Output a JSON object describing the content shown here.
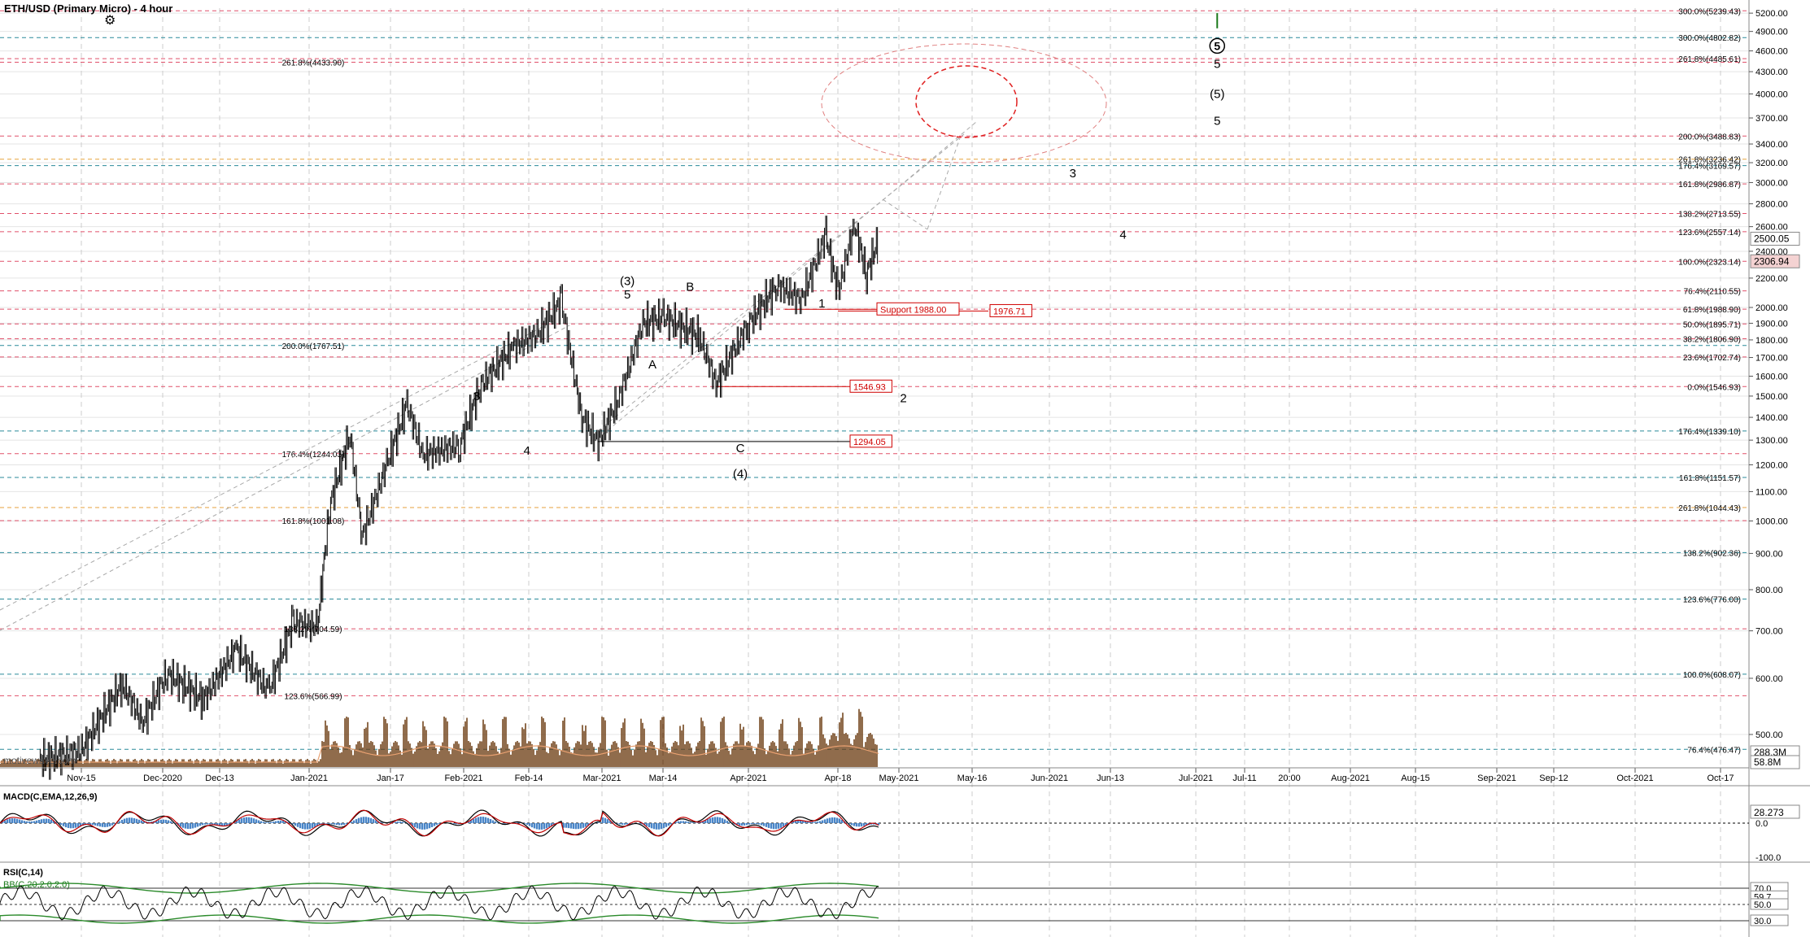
{
  "header": {
    "title": "ETH/USD (Primary Micro) - 4 hour",
    "watermark": "motivewave.com",
    "settings_icon": "gear-icon"
  },
  "colors": {
    "background": "#ffffff",
    "grid": "#c8c8c8",
    "fib_red": "#e0506a",
    "fib_teal": "#2a8a9a",
    "fib_orange": "#e6a23c",
    "candles": "#000000",
    "volume": "#6b3a10",
    "volume_ma": "#e8a070",
    "support_box": "#d00000",
    "macd_line": "#000000",
    "macd_signal": "#c00000",
    "macd_hist": "#4a86c8",
    "rsi_line": "#000000",
    "rsi_band": "#2a8a2a",
    "price_tag_bg": "#f4d2d2"
  },
  "chart_data": {
    "type": "candlestick",
    "title": "ETH/USD (Primary Micro) - 4 hour",
    "price_axis": {
      "ticks": [
        500,
        600,
        700,
        800,
        900,
        1000,
        1100,
        1200,
        1300,
        1400,
        1500,
        1600,
        1700,
        1800,
        1900,
        2000,
        2200,
        2400,
        2600,
        2800,
        3000,
        3200,
        3400,
        3700,
        4000,
        4300,
        4600,
        4900,
        5200
      ],
      "labels": [
        "500.00",
        "600.00",
        "700.00",
        "800.00",
        "900.00",
        "1000.00",
        "1100.00",
        "1200.00",
        "1300.00",
        "1400.00",
        "1500.00",
        "1600.00",
        "1700.00",
        "1800.00",
        "1900.00",
        "2000.00",
        "2200.00",
        "2400.00",
        "2600.00",
        "2800.00",
        "3000.00",
        "3200.00",
        "3400.00",
        "3700.00",
        "4000.00",
        "4300.00",
        "4600.00",
        "4900.00",
        "5200.00"
      ],
      "scale": "log",
      "current_price_labels": [
        "2500.05",
        "2306.94"
      ],
      "volume_labels": [
        "288.3M",
        "58.8M"
      ]
    },
    "time_axis": {
      "labels": [
        "Nov-15",
        "Dec-2020",
        "Dec-13",
        "Jan-2021",
        "Jan-17",
        "Feb-2021",
        "Feb-14",
        "Mar-2021",
        "Mar-14",
        "Apr-2021",
        "Apr-18",
        "May-2021",
        "May-16",
        "Jun-2021",
        "Jun-13",
        "Jul-2021",
        "Jul-11",
        "20:00",
        "Aug-2021",
        "Aug-15",
        "Sep-2021",
        "Sep-12",
        "Oct-2021",
        "Oct-17"
      ]
    },
    "right_fib_levels": [
      {
        "label": "300.0%(5239.43)",
        "value": 5239.43,
        "color": "fib_red"
      },
      {
        "label": "300.0%(4802.82)",
        "value": 4802.82,
        "color": "fib_teal"
      },
      {
        "label": "261.8%(4485.61)",
        "value": 4485.61,
        "color": "fib_red"
      },
      {
        "label": "200.0%(3488.83)",
        "value": 3488.83,
        "color": "fib_red"
      },
      {
        "label": "261.8%(3236.42)",
        "value": 3236.42,
        "color": "fib_orange"
      },
      {
        "label": "176.4%(3169.57)",
        "value": 3169.57,
        "color": "fib_teal"
      },
      {
        "label": "161.8%(2986.87)",
        "value": 2986.87,
        "color": "fib_red"
      },
      {
        "label": "138.2%(2713.55)",
        "value": 2713.55,
        "color": "fib_red"
      },
      {
        "label": "123.6%(2557.14)",
        "value": 2557.14,
        "color": "fib_red"
      },
      {
        "label": "100.0%(2323.14)",
        "value": 2323.14,
        "color": "fib_red"
      },
      {
        "label": "76.4%(2110.55)",
        "value": 2110.55,
        "color": "fib_red"
      },
      {
        "label": "61.8%(1988.90)",
        "value": 1988.9,
        "color": "fib_red"
      },
      {
        "label": "50.0%(1895.71)",
        "value": 1895.71,
        "color": "fib_red"
      },
      {
        "label": "38.2%(1806.90)",
        "value": 1806.9,
        "color": "fib_red"
      },
      {
        "label": "23.6%(1702.74)",
        "value": 1702.74,
        "color": "fib_red"
      },
      {
        "label": "0.0%(1546.93)",
        "value": 1546.93,
        "color": "fib_red"
      },
      {
        "label": "176.4%(1339.10)",
        "value": 1339.1,
        "color": "fib_teal"
      },
      {
        "label": "161.8%(1151.57)",
        "value": 1151.57,
        "color": "fib_teal"
      },
      {
        "label": "261.8%(1044.43)",
        "value": 1044.43,
        "color": "fib_orange"
      },
      {
        "label": "138.2%(902.36)",
        "value": 902.36,
        "color": "fib_teal"
      },
      {
        "label": "123.6%(776.00)",
        "value": 776.0,
        "color": "fib_teal"
      },
      {
        "label": "100.0%(608.07)",
        "value": 608.07,
        "color": "fib_teal"
      },
      {
        "label": "76.4%(476.47)",
        "value": 476.47,
        "color": "fib_teal"
      }
    ],
    "left_fib_levels": [
      {
        "label": "261.8%(4433.90)",
        "value": 4433.9,
        "color": "fib_red"
      },
      {
        "label": "200.0%(1767.51)",
        "value": 1767.51,
        "color": "fib_teal"
      },
      {
        "label": "176.4%(1244.03)",
        "value": 1244.03,
        "color": "fib_red"
      },
      {
        "label": "161.8%(1001.08)",
        "value": 1001.08,
        "color": "fib_red"
      },
      {
        "label": "138.2%(704.59)",
        "value": 704.59,
        "color": "fib_red"
      },
      {
        "label": "123.6%(566.99)",
        "value": 566.99,
        "color": "fib_red"
      }
    ],
    "support_labels": [
      {
        "label": "Support 1988.00",
        "value": 1988.0
      },
      {
        "label": "1976.71",
        "value": 1976.71
      },
      {
        "label": "1546.93",
        "value": 1546.93
      },
      {
        "label": "1294.05",
        "value": 1294.05
      }
    ],
    "wave_labels": [
      {
        "text": "3",
        "date": "Jan-17",
        "price": 1480
      },
      {
        "text": "4",
        "date": "Jan-25",
        "price": 1240
      },
      {
        "text": "(3)",
        "date": "Feb-10",
        "price": 2150
      },
      {
        "text": "5",
        "date": "Feb-10",
        "price": 2060
      },
      {
        "text": "A",
        "date": "Feb-14",
        "price": 1640
      },
      {
        "text": "B",
        "date": "Feb-20",
        "price": 2110
      },
      {
        "text": "C",
        "date": "Feb-28",
        "price": 1250
      },
      {
        "text": "(4)",
        "date": "Feb-28",
        "price": 1150
      },
      {
        "text": "1",
        "date": "Mar-13",
        "price": 2000
      },
      {
        "text": "2",
        "date": "Mar-26",
        "price": 1470
      },
      {
        "text": "3",
        "date": "Apr-22",
        "price": 3050
      },
      {
        "text": "4",
        "date": "Apr-30",
        "price": 2500
      },
      {
        "text": "5",
        "date": "May-15",
        "price": 4350
      },
      {
        "text": "(5)",
        "date": "May-15",
        "price": 3950
      },
      {
        "text": "5",
        "date": "May-15",
        "price": 3620
      }
    ],
    "macd": {
      "label": "MACD(C,EMA,12,26,9)",
      "axis_labels": [
        "28.273",
        "0.0",
        "-100.0"
      ]
    },
    "rsi": {
      "label": "RSI(C,14)",
      "sub_label": "BB(C,20,2.0,2.0)",
      "axis_labels": [
        "70.0",
        "59.7",
        "50.0",
        "30.0"
      ]
    }
  }
}
